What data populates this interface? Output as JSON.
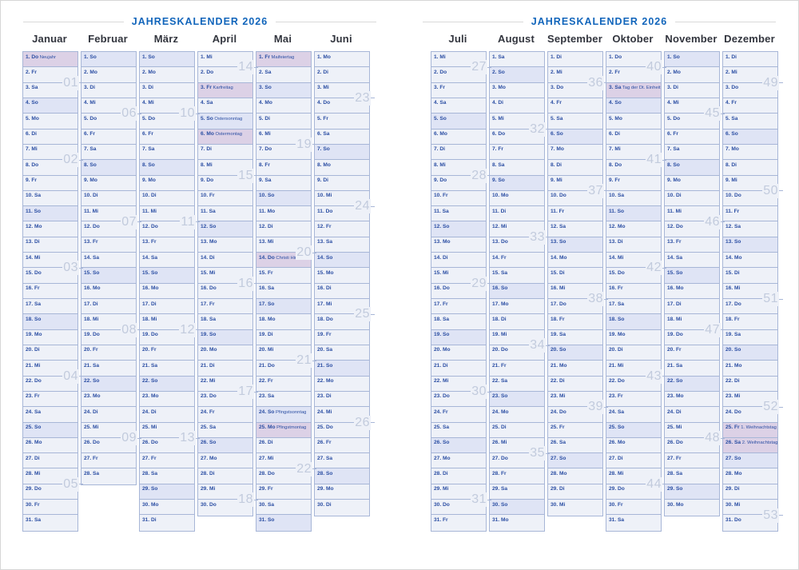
{
  "title": "JAHRESKALENDER 2026",
  "weekdays": [
    "Mo",
    "Di",
    "Mi",
    "Do",
    "Fr",
    "Sa",
    "So"
  ],
  "colors": {
    "title_blue": "#1165bb",
    "day_text": "#2b4ea3",
    "cell_border": "#a7b6d7",
    "cell_bg": "#eef1f8",
    "sunday_bg": "#dfe4f5",
    "holiday_bg": "#dcd1e6",
    "week_number": "#c2cbdd",
    "month_name": "#32353e",
    "rule_gray": "#d9d9d9"
  },
  "pages": [
    {
      "months": [
        {
          "name": "Januar",
          "days": 31,
          "first": "Do",
          "holidays": {
            "1": "Neujahr"
          },
          "weeks": [
            {
              "num": "01",
              "after": 2
            },
            {
              "num": "02",
              "after": 7
            },
            {
              "num": "03",
              "after": 14
            },
            {
              "num": "04",
              "after": 21
            },
            {
              "num": "05",
              "after": 28
            }
          ]
        },
        {
          "name": "Februar",
          "days": 28,
          "first": "So",
          "holidays": {},
          "weeks": [
            {
              "num": "06",
              "after": 4
            },
            {
              "num": "07",
              "after": 11
            },
            {
              "num": "08",
              "after": 18
            },
            {
              "num": "09",
              "after": 25
            }
          ]
        },
        {
          "name": "März",
          "days": 31,
          "first": "So",
          "holidays": {},
          "weeks": [
            {
              "num": "10",
              "after": 4
            },
            {
              "num": "11",
              "after": 11
            },
            {
              "num": "12",
              "after": 18
            },
            {
              "num": "13",
              "after": 25
            }
          ]
        },
        {
          "name": "April",
          "days": 30,
          "first": "Mi",
          "holidays": {
            "3": "Karfreitag",
            "5": "Ostersonntag",
            "6": "Ostermontag"
          },
          "weeks": [
            {
              "num": "14",
              "after": 1
            },
            {
              "num": "15",
              "after": 8
            },
            {
              "num": "16",
              "after": 15
            },
            {
              "num": "17",
              "after": 22
            },
            {
              "num": "18",
              "after": 29
            }
          ]
        },
        {
          "name": "Mai",
          "days": 31,
          "first": "Fr",
          "holidays": {
            "1": "Maifeiertag",
            "14": "Christi Himmelfahrt",
            "24": "Pfingstsonntag",
            "25": "Pfingstmontag"
          },
          "weeks": [
            {
              "num": "19",
              "after": 6
            },
            {
              "num": "20",
              "after": 13
            },
            {
              "num": "21",
              "after": 20
            },
            {
              "num": "22",
              "after": 27
            }
          ]
        },
        {
          "name": "Juni",
          "days": 30,
          "first": "Mo",
          "holidays": {},
          "weeks": [
            {
              "num": "23",
              "after": 3
            },
            {
              "num": "24",
              "after": 10
            },
            {
              "num": "25",
              "after": 17
            },
            {
              "num": "26",
              "after": 24
            }
          ]
        }
      ]
    },
    {
      "months": [
        {
          "name": "Juli",
          "days": 31,
          "first": "Mi",
          "holidays": {},
          "weeks": [
            {
              "num": "27",
              "after": 1
            },
            {
              "num": "28",
              "after": 8
            },
            {
              "num": "29",
              "after": 15
            },
            {
              "num": "30",
              "after": 22
            },
            {
              "num": "31",
              "after": 29
            }
          ]
        },
        {
          "name": "August",
          "days": 31,
          "first": "Sa",
          "holidays": {},
          "weeks": [
            {
              "num": "32",
              "after": 5
            },
            {
              "num": "33",
              "after": 12
            },
            {
              "num": "34",
              "after": 19
            },
            {
              "num": "35",
              "after": 26
            }
          ]
        },
        {
          "name": "September",
          "days": 30,
          "first": "Di",
          "holidays": {},
          "weeks": [
            {
              "num": "36",
              "after": 2
            },
            {
              "num": "37",
              "after": 9
            },
            {
              "num": "38",
              "after": 16
            },
            {
              "num": "39",
              "after": 23
            }
          ]
        },
        {
          "name": "Oktober",
          "days": 31,
          "first": "Do",
          "holidays": {
            "3": "Tag der Dt. Einheit (D)"
          },
          "weeks": [
            {
              "num": "40",
              "after": 1
            },
            {
              "num": "41",
              "after": 7
            },
            {
              "num": "42",
              "after": 14
            },
            {
              "num": "43",
              "after": 21
            },
            {
              "num": "44",
              "after": 28
            }
          ]
        },
        {
          "name": "November",
          "days": 30,
          "first": "So",
          "holidays": {},
          "weeks": [
            {
              "num": "45",
              "after": 4
            },
            {
              "num": "46",
              "after": 11
            },
            {
              "num": "47",
              "after": 18
            },
            {
              "num": "48",
              "after": 25
            }
          ]
        },
        {
          "name": "Dezember",
          "days": 31,
          "first": "Di",
          "holidays": {
            "25": "1. Weihnachtstag",
            "26": "2. Weihnachtstag"
          },
          "weeks": [
            {
              "num": "49",
              "after": 2
            },
            {
              "num": "50",
              "after": 9
            },
            {
              "num": "51",
              "after": 16
            },
            {
              "num": "52",
              "after": 23
            },
            {
              "num": "53",
              "after": 30
            }
          ]
        }
      ]
    }
  ]
}
